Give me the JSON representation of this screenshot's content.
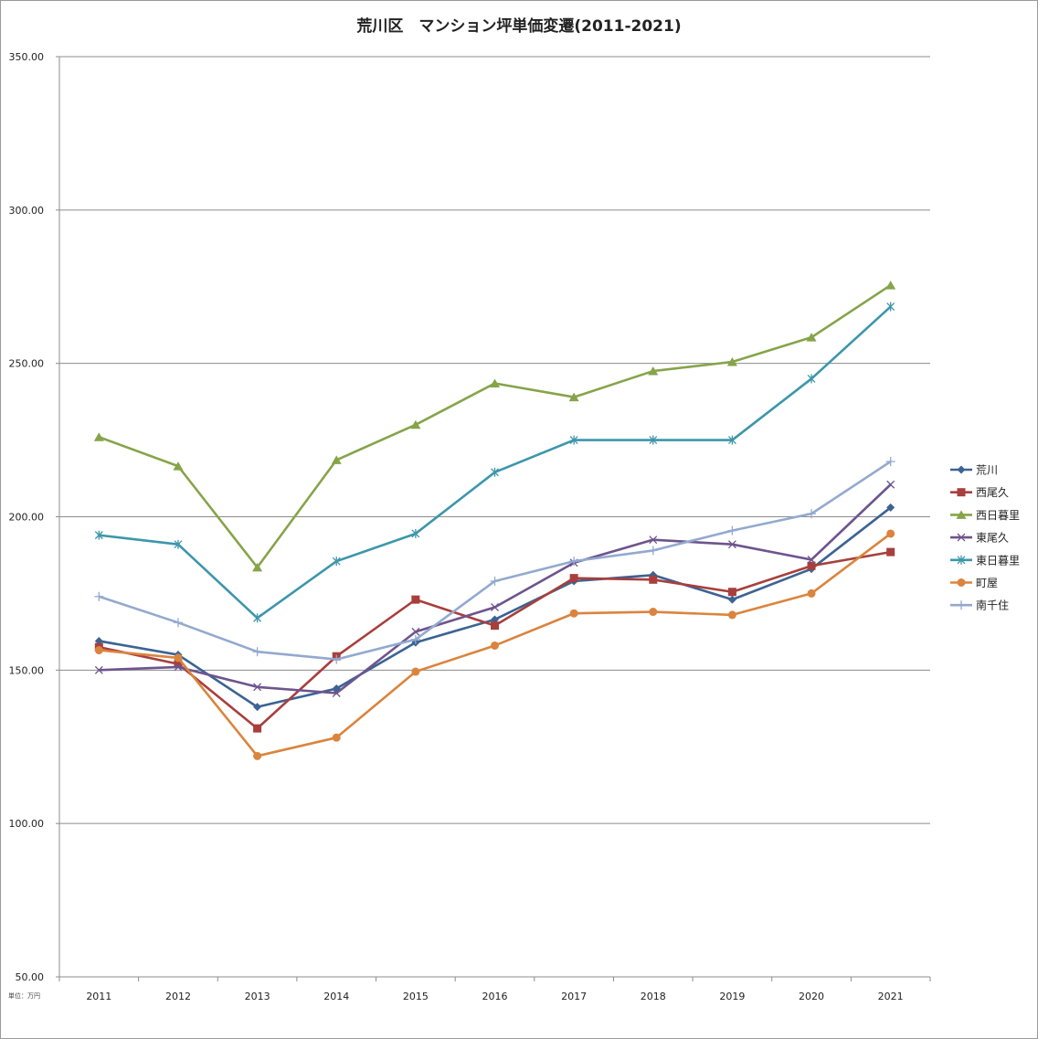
{
  "chart_data": {
    "type": "line",
    "title": "荒川区　マンション坪単価変遷(2011-2021)",
    "unit_note": "単位：万円",
    "xlabel": "",
    "ylabel": "",
    "ylim": [
      50,
      350
    ],
    "y_ticks": [
      "50.00",
      "100.00",
      "150.00",
      "200.00",
      "250.00",
      "300.00",
      "350.00"
    ],
    "y_tick_values": [
      50,
      100,
      150,
      200,
      250,
      300,
      350
    ],
    "categories": [
      "2011",
      "2012",
      "2013",
      "2014",
      "2015",
      "2016",
      "2017",
      "2018",
      "2019",
      "2020",
      "2021"
    ],
    "grid": "horizontal",
    "legend_position": "right",
    "series": [
      {
        "name": "荒川",
        "color": "#3b6393",
        "marker": "diamond",
        "values": [
          159.5,
          155.0,
          138.0,
          144.0,
          159.0,
          166.5,
          179.0,
          181.0,
          173.0,
          183.0,
          203.0
        ]
      },
      {
        "name": "西尾久",
        "color": "#a83f3c",
        "marker": "square",
        "values": [
          157.5,
          152.0,
          131.0,
          154.5,
          173.0,
          164.5,
          180.0,
          179.5,
          175.5,
          184.0,
          188.5
        ]
      },
      {
        "name": "西日暮里",
        "color": "#86a44a",
        "marker": "triangle",
        "values": [
          226.0,
          216.5,
          183.5,
          218.5,
          230.0,
          243.5,
          239.0,
          247.5,
          250.5,
          258.5,
          275.5
        ]
      },
      {
        "name": "東尾久",
        "color": "#6e548d",
        "marker": "x",
        "values": [
          150.0,
          151.0,
          144.5,
          142.5,
          162.5,
          170.5,
          185.0,
          192.5,
          191.0,
          186.0,
          210.5
        ]
      },
      {
        "name": "東日暮里",
        "color": "#3d96ab",
        "marker": "asterisk",
        "values": [
          194.0,
          191.0,
          167.0,
          185.5,
          194.5,
          214.5,
          225.0,
          225.0,
          225.0,
          245.0,
          268.5
        ]
      },
      {
        "name": "町屋",
        "color": "#db843d",
        "marker": "circle",
        "values": [
          156.5,
          154.0,
          122.0,
          128.0,
          149.5,
          158.0,
          168.5,
          169.0,
          168.0,
          175.0,
          194.5
        ]
      },
      {
        "name": "南千住",
        "color": "#93a9cf",
        "marker": "plus",
        "values": [
          174.0,
          165.5,
          156.0,
          153.5,
          160.0,
          179.0,
          185.5,
          189.0,
          195.5,
          201.0,
          218.0
        ]
      }
    ]
  }
}
